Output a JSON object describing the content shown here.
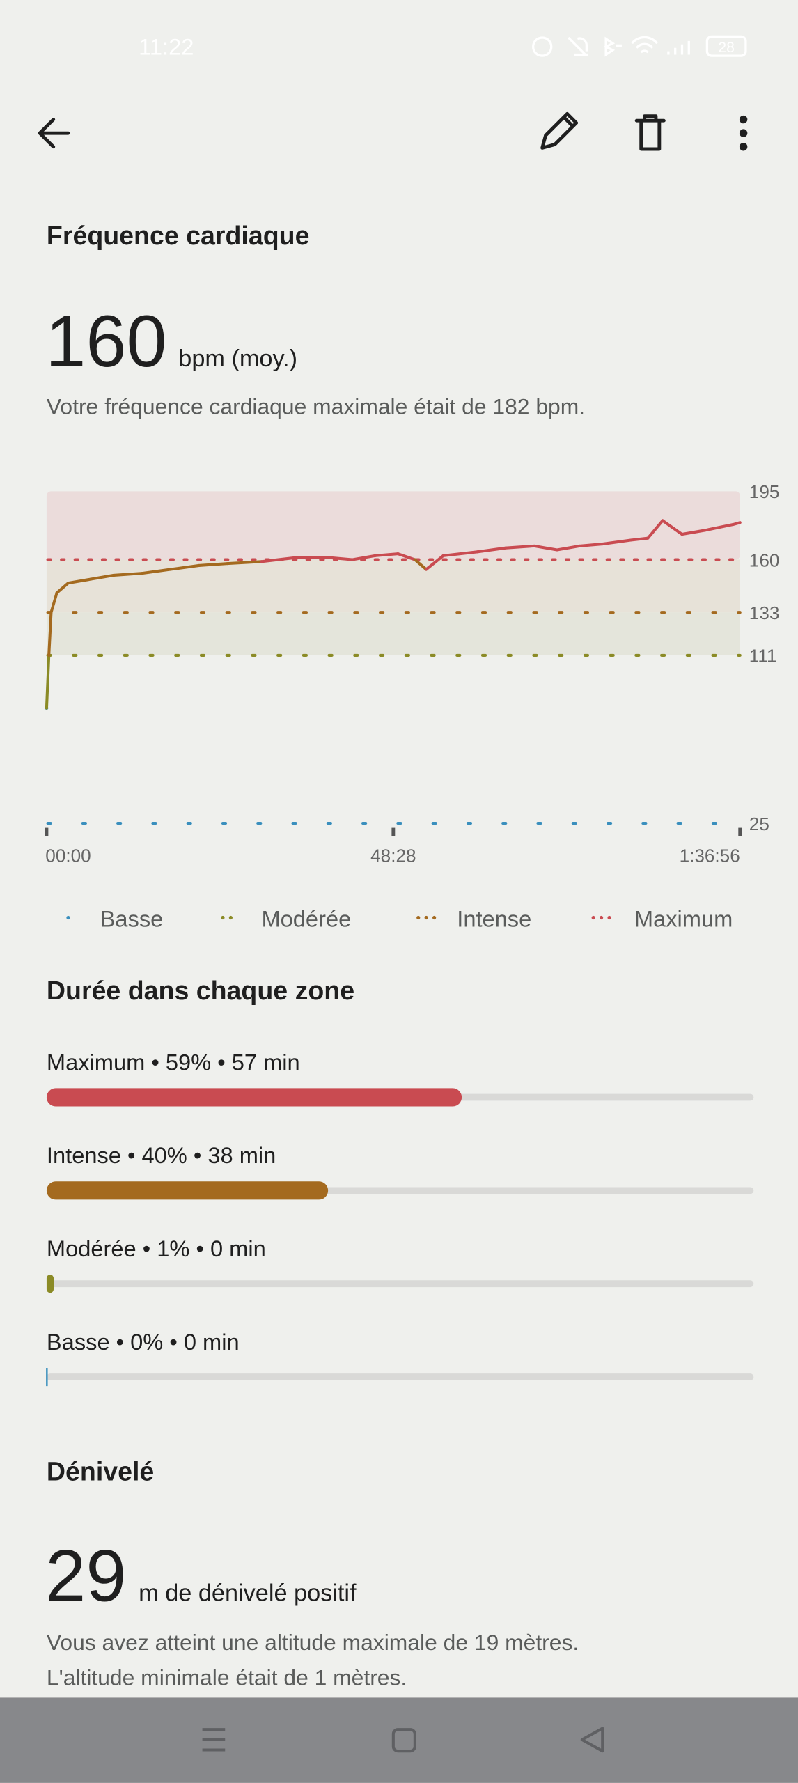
{
  "status_bar": {
    "time": "11:22",
    "battery": "28"
  },
  "heart_rate": {
    "title": "Fréquence cardiaque",
    "value": "160",
    "unit": "bpm (moy.)",
    "note": "Votre fréquence cardiaque maximale était de 182 bpm."
  },
  "chart_data": {
    "type": "line",
    "x": [
      0,
      19,
      38,
      86,
      181,
      372,
      563,
      801,
      1039,
      1278,
      1516,
      1802,
      2088,
      2374,
      2565,
      2755,
      2946,
      3089,
      3184,
      3327,
      3613,
      3852,
      4090,
      4281,
      4471,
      4662,
      4900,
      5043,
      5167,
      5329,
      5520,
      5758,
      5816
    ],
    "values": [
      84,
      111,
      133,
      143,
      148,
      150,
      152,
      153,
      155,
      157,
      158,
      159,
      161,
      161,
      160,
      162,
      163,
      160,
      155,
      162,
      164,
      166,
      167,
      165,
      167,
      168,
      170,
      171,
      180,
      173,
      175,
      178,
      179
    ],
    "xlim": [
      0,
      5816
    ],
    "xticks": [
      {
        "value": 0,
        "label": "00:00"
      },
      {
        "value": 2908,
        "label": "48:28"
      },
      {
        "value": 5816,
        "label": "1:36:56"
      }
    ],
    "ylim": [
      25,
      195
    ],
    "yticks": [
      25,
      111,
      133,
      160,
      195
    ],
    "zones": [
      {
        "name": "Basse",
        "color": "#3a8fbd",
        "from": 25
      },
      {
        "name": "Modérée",
        "color": "#8b8b26",
        "from": 111
      },
      {
        "name": "Intense",
        "color": "#a46a1f",
        "from": 133
      },
      {
        "name": "Maximum",
        "color": "#c94b51",
        "from": 160
      }
    ]
  },
  "zone_time": {
    "title": "Durée dans chaque zone",
    "rows": [
      {
        "label": "Maximum • 59% • 57 min",
        "percent": 59,
        "color": "#c94b51"
      },
      {
        "label": "Intense • 40% • 38 min",
        "percent": 40,
        "color": "#a46a1f"
      },
      {
        "label": "Modérée • 1% • 0 min",
        "percent": 1,
        "color": "#8b8b26"
      },
      {
        "label": "Basse • 0% • 0 min",
        "percent": 0,
        "color": "#3a8fbd"
      }
    ]
  },
  "elevation": {
    "title": "Dénivelé",
    "value": "29",
    "unit": "m de dénivelé positif",
    "lines": [
      "Vous avez atteint une altitude maximale de 19 mètres.",
      "L'altitude minimale était de 1 mètres."
    ]
  }
}
